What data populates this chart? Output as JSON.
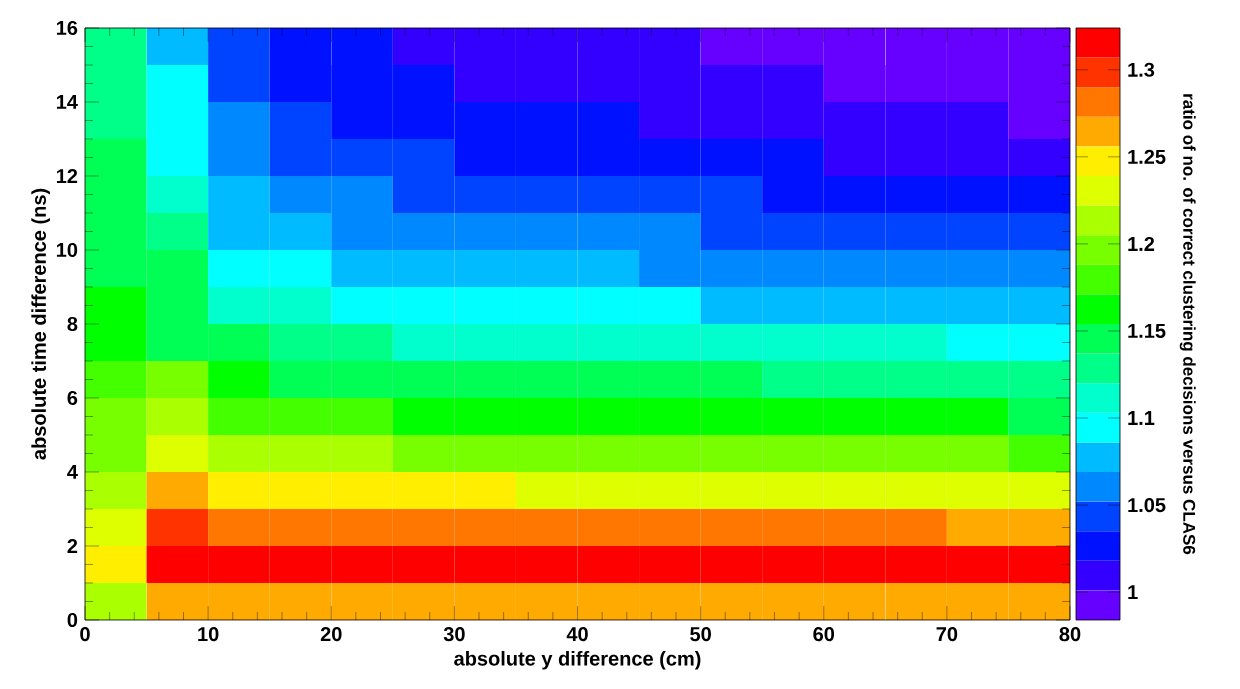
{
  "chart_data": {
    "type": "heatmap",
    "xlabel": "absolute y difference (cm)",
    "ylabel": "absolute time difference (ns)",
    "clabel": "ratio of no. of correct clustering decisions versus CLAS6",
    "cells": [
      [
        1.13,
        1.08,
        1.04,
        1.03,
        1.03,
        1.01,
        1.01,
        1.01,
        1.01,
        1.01,
        0.99,
        0.99,
        0.99,
        0.99,
        0.99,
        0.99
      ],
      [
        1.13,
        1.1,
        1.04,
        1.03,
        1.03,
        1.03,
        1.01,
        1.01,
        1.01,
        1.01,
        1.01,
        1.01,
        0.99,
        0.99,
        0.99,
        0.99
      ],
      [
        1.13,
        1.1,
        1.06,
        1.04,
        1.03,
        1.03,
        1.03,
        1.03,
        1.03,
        1.01,
        1.01,
        1.01,
        1.01,
        1.01,
        1.01,
        0.99
      ],
      [
        1.15,
        1.1,
        1.06,
        1.04,
        1.04,
        1.04,
        1.03,
        1.03,
        1.03,
        1.03,
        1.03,
        1.03,
        1.01,
        1.01,
        1.01,
        1.01
      ],
      [
        1.15,
        1.11,
        1.08,
        1.06,
        1.06,
        1.04,
        1.04,
        1.04,
        1.04,
        1.04,
        1.04,
        1.03,
        1.03,
        1.03,
        1.03,
        1.03
      ],
      [
        1.15,
        1.13,
        1.08,
        1.08,
        1.06,
        1.06,
        1.06,
        1.06,
        1.06,
        1.06,
        1.04,
        1.04,
        1.04,
        1.04,
        1.04,
        1.04
      ],
      [
        1.15,
        1.15,
        1.1,
        1.1,
        1.08,
        1.08,
        1.08,
        1.08,
        1.08,
        1.06,
        1.06,
        1.06,
        1.06,
        1.06,
        1.06,
        1.06
      ],
      [
        1.16,
        1.15,
        1.11,
        1.11,
        1.1,
        1.1,
        1.1,
        1.1,
        1.1,
        1.1,
        1.08,
        1.08,
        1.08,
        1.08,
        1.08,
        1.08
      ],
      [
        1.16,
        1.15,
        1.15,
        1.13,
        1.13,
        1.11,
        1.11,
        1.11,
        1.11,
        1.11,
        1.11,
        1.11,
        1.11,
        1.11,
        1.1,
        1.1
      ],
      [
        1.18,
        1.2,
        1.16,
        1.15,
        1.15,
        1.15,
        1.15,
        1.15,
        1.15,
        1.15,
        1.15,
        1.13,
        1.13,
        1.13,
        1.13,
        1.13
      ],
      [
        1.2,
        1.21,
        1.18,
        1.18,
        1.18,
        1.16,
        1.16,
        1.16,
        1.16,
        1.16,
        1.16,
        1.16,
        1.16,
        1.16,
        1.16,
        1.15
      ],
      [
        1.2,
        1.23,
        1.21,
        1.21,
        1.21,
        1.2,
        1.2,
        1.2,
        1.2,
        1.2,
        1.2,
        1.2,
        1.2,
        1.2,
        1.2,
        1.18
      ],
      [
        1.21,
        1.27,
        1.25,
        1.25,
        1.25,
        1.25,
        1.25,
        1.23,
        1.23,
        1.23,
        1.23,
        1.23,
        1.23,
        1.23,
        1.23,
        1.23
      ],
      [
        1.23,
        1.3,
        1.28,
        1.28,
        1.28,
        1.28,
        1.28,
        1.28,
        1.28,
        1.28,
        1.28,
        1.28,
        1.28,
        1.28,
        1.27,
        1.27
      ],
      [
        1.25,
        1.32,
        1.32,
        1.32,
        1.32,
        1.32,
        1.32,
        1.32,
        1.32,
        1.32,
        1.32,
        1.32,
        1.32,
        1.32,
        1.32,
        1.32
      ],
      [
        1.21,
        1.27,
        1.27,
        1.27,
        1.27,
        1.27,
        1.27,
        1.27,
        1.27,
        1.27,
        1.27,
        1.27,
        1.27,
        1.27,
        1.27,
        1.27
      ]
    ],
    "clim": [
      0.984,
      1.324
    ],
    "cticks": [
      1,
      1.05,
      1.1,
      1.15,
      1.2,
      1.25,
      1.3
    ],
    "xlim": [
      0,
      80
    ],
    "ylim": [
      0,
      16
    ],
    "xticks": [
      0,
      10,
      20,
      30,
      40,
      50,
      60,
      70,
      80
    ],
    "yticks": [
      0,
      2,
      4,
      6,
      8,
      10,
      12,
      14,
      16
    ]
  }
}
